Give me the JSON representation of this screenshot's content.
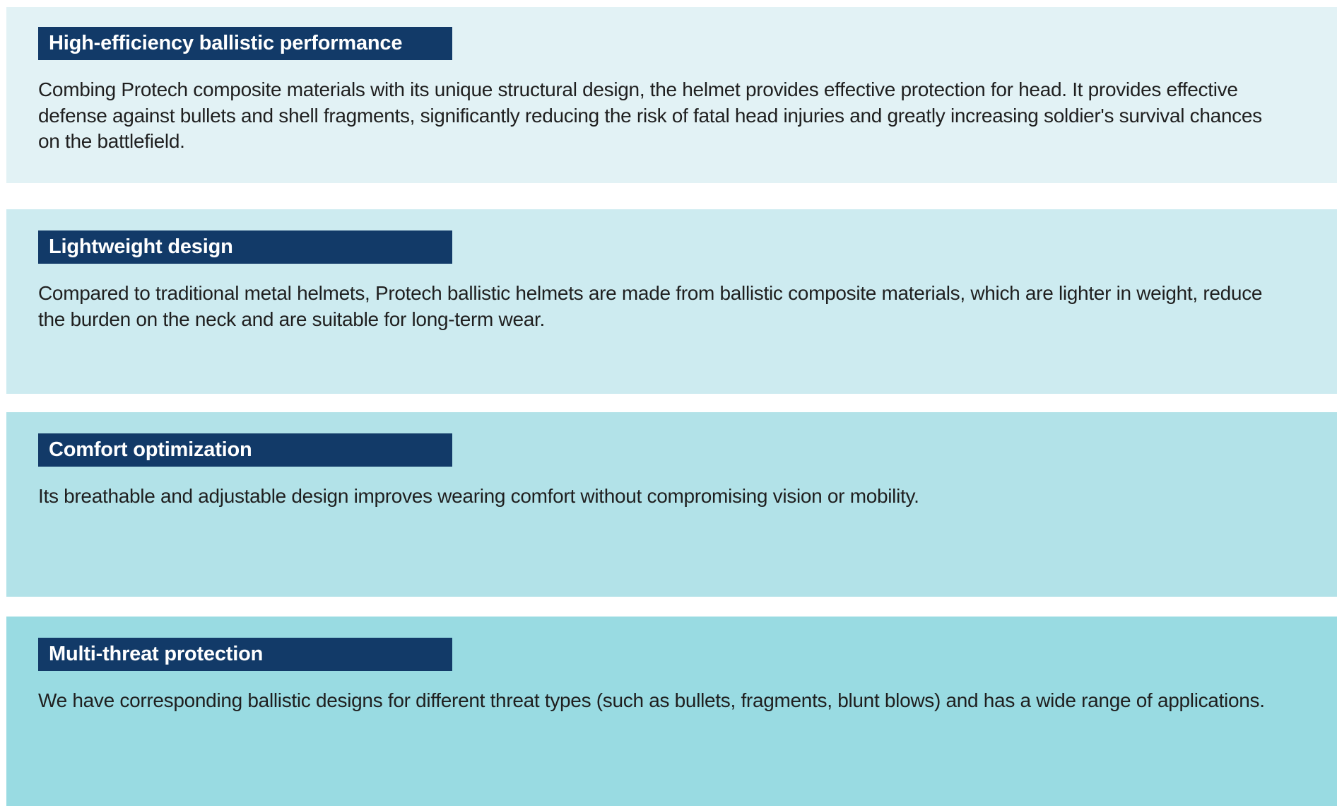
{
  "page": {
    "background": "#ffffff"
  },
  "colors": {
    "badge_background": "#123a68",
    "badge_text": "#ffffff",
    "body_text": "#1f1f1f"
  },
  "sections": [
    {
      "id": "high-efficiency-ballistic-performance",
      "title": "High-efficiency ballistic performance",
      "body": "Combing Protech composite materials with its unique structural design, the helmet provides effective protection for head. It provides effective defense against bullets and shell fragments, significantly reducing the risk of fatal head injuries and greatly increasing soldier's survival chances on the battlefield.",
      "background": "#e2f2f5"
    },
    {
      "id": "lightweight-design",
      "title": "Lightweight design",
      "body": "Compared to traditional metal helmets, Protech ballistic helmets are made from ballistic composite materials, which are lighter in weight, reduce the burden on the neck and are suitable for long-term wear.",
      "background": "#cdebf0"
    },
    {
      "id": "comfort-optimization",
      "title": "Comfort optimization",
      "body": "Its breathable and adjustable design improves wearing comfort without compromising vision or mobility.",
      "background": "#b2e2e8"
    },
    {
      "id": "multi-threat-protection",
      "title": "Multi-threat protection",
      "body": "We have corresponding ballistic designs for different threat types (such as bullets, fragments, blunt blows) and has a wide range of applications.",
      "background": "#99dbe2"
    }
  ]
}
